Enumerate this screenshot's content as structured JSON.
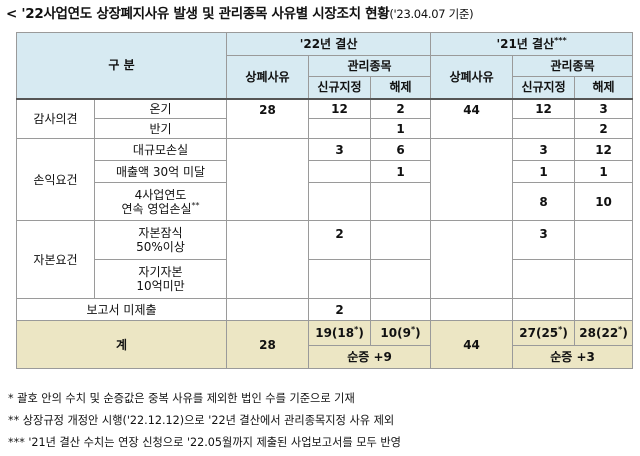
{
  "title": {
    "prefix": "<",
    "main": "'22사업연도 상장폐지사유 발생 및 관리종목 사유별 시장조치 현황",
    "date": "('23.04.07 기준)"
  },
  "header": {
    "category": "구 분",
    "year22": "'22년 결산",
    "year21": "'21년 결산",
    "year21_mark": "***",
    "delisting": "상폐사유",
    "managed": "관리종목",
    "new_designation": "신규지정",
    "release": "해제"
  },
  "rows": {
    "audit": {
      "group": "감사의견",
      "adverse": {
        "label": "온기",
        "y22_delist": "28",
        "y22_new": "12",
        "y22_release": "2",
        "y21_delist": "44",
        "y21_new": "12",
        "y21_release": "3"
      },
      "half": {
        "label": "반기",
        "y22_release": "1",
        "y21_release": "2"
      }
    },
    "profit": {
      "group": "손익요건",
      "large_loss": {
        "label": "대규모손실",
        "y22_new": "3",
        "y22_release": "6",
        "y21_new": "3",
        "y21_release": "12"
      },
      "sales": {
        "label": "매출액 30억 미달",
        "y22_release": "1",
        "y21_new": "1",
        "y21_release": "1"
      },
      "op_loss": {
        "label_line1": "4사업연도",
        "label_line2": "연속 영업손실",
        "label_mark": "**",
        "y21_new": "8",
        "y21_release": "10"
      }
    },
    "capital": {
      "group": "자본요건",
      "impair": {
        "label_line1": "자본잠식",
        "label_line2": "50%이상",
        "y22_new": "2",
        "y21_new": "3"
      },
      "equity": {
        "label_line1": "자기자본",
        "label_line2": "10억미만"
      }
    },
    "report": {
      "label": "보고서 미제출",
      "y22_new": "2"
    }
  },
  "total": {
    "label": "계",
    "y22_delist": "28",
    "y22_new": "19(18",
    "y22_new_mark": "*",
    "y22_release": "10(9",
    "y22_release_mark": "*",
    "y22_net": "순증 +9",
    "y21_delist": "44",
    "y21_new": "27(25",
    "y21_new_mark": "*",
    "y21_release": "28(22",
    "y21_release_mark": "*",
    "y21_net": "순증 +3",
    "close_paren": ")"
  },
  "notes": [
    "  * 괄호 안의 수치 및 순증값은 중복 사유를 제외한 법인 수를 기준으로 기재",
    " ** 상장규정 개정안 시행('22.12.12)으로 '22년 결산에서 관리종목지정 사유 제외",
    "*** '21년 결산 수치는 연장 신청으로 '22.05월까지 제출된 사업보고서를 모두 반영"
  ]
}
